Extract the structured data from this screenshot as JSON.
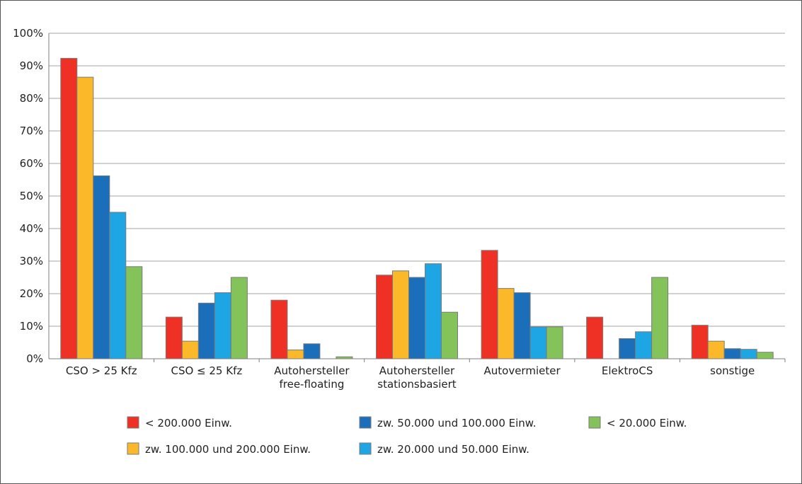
{
  "chart_data": {
    "type": "bar",
    "categories": [
      [
        "CSO > 25 Kfz"
      ],
      [
        "CSO ≤ 25 Kfz"
      ],
      [
        "Autohersteller",
        "free-floating"
      ],
      [
        "Autohersteller",
        "stationsbasiert"
      ],
      [
        "Autovermieter"
      ],
      [
        "ElektroCS"
      ],
      [
        "sonstige"
      ]
    ],
    "series": [
      {
        "name": "< 200.000 Einw.",
        "color": "#ee3124",
        "values": [
          92.3,
          12.8,
          18.0,
          25.7,
          33.3,
          12.8,
          10.3
        ]
      },
      {
        "name": "zw. 100.000 und 200.000 Einw.",
        "color": "#fbb829",
        "values": [
          86.5,
          5.4,
          2.7,
          27.0,
          21.6,
          0,
          5.4
        ]
      },
      {
        "name": "zw. 50.000 und 100.000 Einw.",
        "color": "#1b6fba",
        "values": [
          56.2,
          17.1,
          4.6,
          25.0,
          20.3,
          6.2,
          3.1
        ]
      },
      {
        "name": "zw. 20.000 und 50.000 Einw.",
        "color": "#1ea6e4",
        "values": [
          45.0,
          20.3,
          0,
          29.2,
          9.8,
          8.3,
          2.9
        ]
      },
      {
        "name": "< 20.000 Einw.",
        "color": "#84c25a",
        "values": [
          28.3,
          25.0,
          0.6,
          14.3,
          9.8,
          25.0,
          2.0
        ]
      }
    ],
    "yticks": [
      "0%",
      "10%",
      "20%",
      "30%",
      "40%",
      "50%",
      "60%",
      "70%",
      "80%",
      "90%",
      "100%"
    ],
    "ylim": [
      0,
      100
    ],
    "grid": true,
    "legend_position": "bottom",
    "legend_order": [
      0,
      2,
      4,
      1,
      3
    ]
  }
}
